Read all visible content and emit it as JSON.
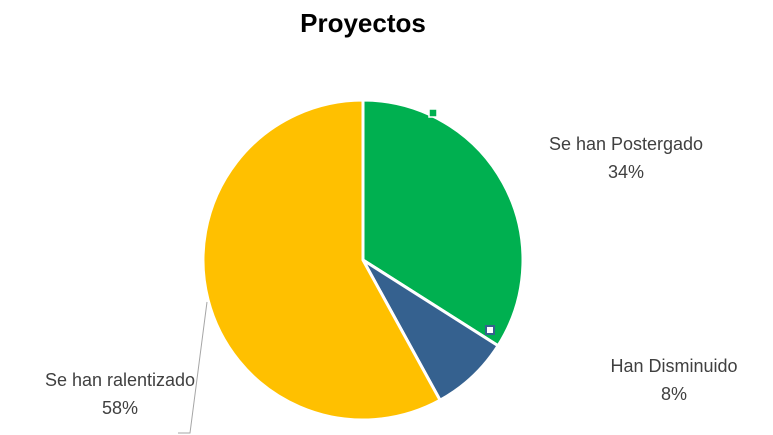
{
  "chart_data": {
    "type": "pie",
    "title": "Proyectos",
    "categories": [
      "Se han Postergado",
      "Han Disminuido",
      "Se han ralentizado"
    ],
    "values": [
      34,
      8,
      58
    ],
    "value_labels": [
      "34%",
      "8%",
      "58%"
    ],
    "colors": [
      "#00b050",
      "#35618f",
      "#ffc000"
    ]
  }
}
